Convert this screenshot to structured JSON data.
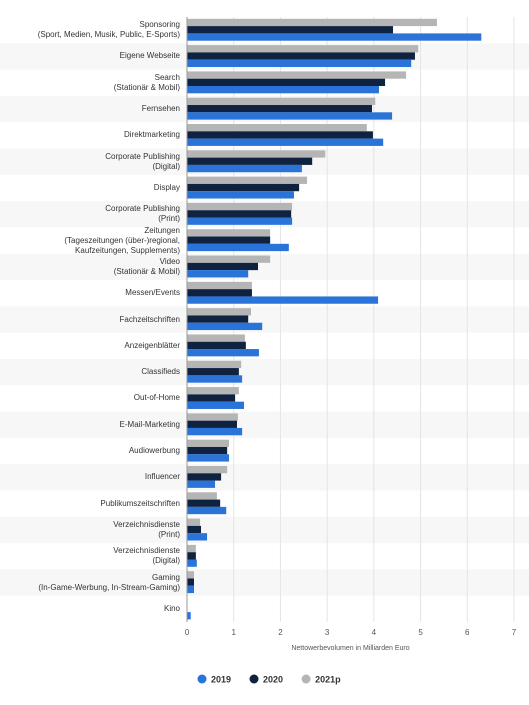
{
  "chart_data": {
    "type": "bar",
    "orientation": "horizontal",
    "categories": [
      "Sponsoring\n(Sport, Medien, Musik, Public, E-Sports)",
      "Eigene Webseite",
      "Search\n(Stationär & Mobil)",
      "Fernsehen",
      "Direktmarketing",
      "Corporate Publishing\n(Digital)",
      "Display",
      "Corporate Publishing\n(Print)",
      "Zeitungen\n(Tageszeitungen (über-)regional,\nKaufzeitungen, Supplements)",
      "Video\n(Stationär & Mobil)",
      "Messen/Events",
      "Fachzeitschriften",
      "Anzeigenblätter",
      "Classifieds",
      "Out-of-Home",
      "E-Mail-Marketing",
      "Audiowerbung",
      "Influencer",
      "Publikumszeitschriften",
      "Verzeichnisdienste\n(Print)",
      "Verzeichnisdienste\n(Digital)",
      "Gaming\n(In-Game-Werbung, In-Stream-Gaming)",
      "Kino"
    ],
    "series": [
      {
        "name": "2019",
        "color": "#2a73d9",
        "values": [
          6.3,
          4.8,
          4.11,
          4.39,
          4.2,
          2.46,
          2.29,
          2.25,
          2.18,
          1.31,
          4.09,
          1.61,
          1.54,
          1.18,
          1.22,
          1.18,
          0.9,
          0.6,
          0.84,
          0.43,
          0.21,
          0.15,
          0.08
        ]
      },
      {
        "name": "2020",
        "color": "#0f2340",
        "values": [
          4.41,
          4.88,
          4.24,
          3.96,
          3.98,
          2.68,
          2.4,
          2.23,
          1.78,
          1.52,
          1.39,
          1.31,
          1.26,
          1.11,
          1.03,
          1.07,
          0.86,
          0.73,
          0.71,
          0.3,
          0.19,
          0.15,
          0.01
        ]
      },
      {
        "name": "2021p",
        "color": "#b5b5b5",
        "values": [
          5.35,
          4.95,
          4.69,
          4.03,
          3.85,
          2.96,
          2.57,
          2.25,
          1.78,
          1.78,
          1.39,
          1.37,
          1.24,
          1.16,
          1.11,
          1.09,
          0.9,
          0.86,
          0.64,
          0.28,
          0.19,
          0.15,
          0.01
        ]
      }
    ],
    "xlabel": "Nettowerbevolumen in Milliarden Euro",
    "xlim": [
      0,
      7
    ],
    "xticks": [
      0,
      1,
      2,
      3,
      4,
      5,
      6,
      7
    ],
    "grid": true
  }
}
